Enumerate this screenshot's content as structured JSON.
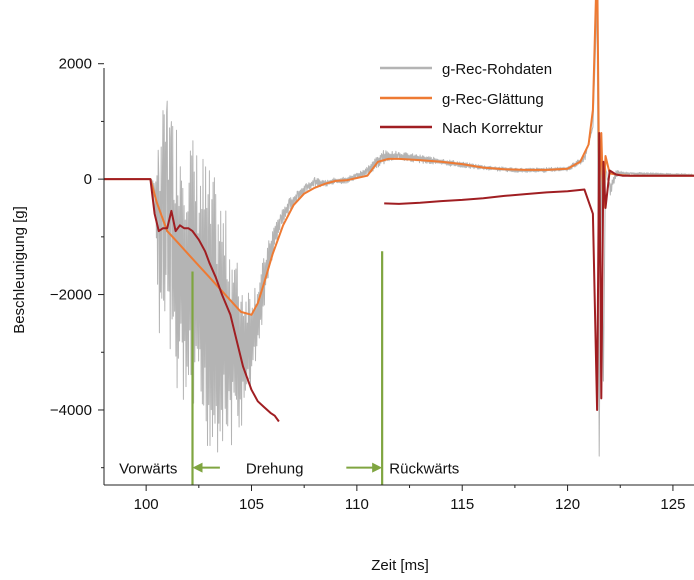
{
  "chart_data": {
    "type": "line",
    "title": "",
    "xlabel": "Zeit [ms]",
    "ylabel": "Beschleunigung [g]",
    "xlim": [
      98,
      126
    ],
    "ylim": [
      -5300,
      3000
    ],
    "xticks": [
      100,
      105,
      110,
      115,
      120,
      125
    ],
    "yticks": [
      2000,
      0,
      -2000,
      -4000
    ],
    "ytick_labels": [
      "2000",
      "0",
      "−2000",
      "−4000"
    ],
    "grid": false,
    "legend_position": "top-right",
    "series": [
      {
        "name": "g-Rec-Rohdaten",
        "color": "#b4b4b4",
        "x": [
          98,
          100.2,
          100.4,
          100.6,
          100.8,
          101,
          101.2,
          101.5,
          101.8,
          102.1,
          102.4,
          102.7,
          103,
          103.3,
          103.6,
          103.9,
          104.2,
          104.5,
          104.8,
          105.1,
          105.4,
          105.7,
          106,
          106.4,
          106.8,
          107.2,
          107.6,
          108,
          108.5,
          109,
          109.5,
          110,
          110.5,
          111,
          111.2,
          111.5,
          112,
          113,
          114,
          115,
          116,
          117,
          118,
          119,
          120,
          120.8,
          121.2,
          121.4,
          121.5,
          121.6,
          121.7,
          121.8,
          122,
          122.3,
          122.6,
          123,
          124,
          125,
          126
        ],
        "y": [
          0,
          0,
          -300,
          -900,
          -800,
          -700,
          -1200,
          -1400,
          -1600,
          -1700,
          -1900,
          -2100,
          -2300,
          -2400,
          -2500,
          -2700,
          -2900,
          -3000,
          -2900,
          -2600,
          -2200,
          -1600,
          -1100,
          -700,
          -450,
          -300,
          -150,
          -50,
          -80,
          -30,
          -20,
          50,
          150,
          300,
          350,
          400,
          400,
          350,
          300,
          250,
          200,
          170,
          150,
          160,
          180,
          350,
          900,
          3100,
          -4800,
          600,
          -3500,
          200,
          -200,
          100,
          100,
          100,
          90,
          80,
          70
        ],
        "noise": [
          0,
          0,
          300,
          1800,
          2000,
          2200,
          2400,
          2500,
          2600,
          2600,
          2500,
          2600,
          2500,
          2400,
          2200,
          2000,
          1700,
          1400,
          1100,
          800,
          600,
          400,
          250,
          150,
          120,
          100,
          90,
          80,
          60,
          60,
          60,
          60,
          70,
          120,
          150,
          90,
          80,
          70,
          60,
          50,
          40,
          40,
          40,
          40,
          40,
          60,
          0,
          0,
          0,
          0,
          0,
          0,
          150,
          60,
          30,
          20,
          20,
          20,
          20
        ]
      },
      {
        "name": "g-Rec-Glättung",
        "color": "#ee7a33",
        "x": [
          98,
          100.2,
          100.5,
          101,
          101.5,
          102,
          102.5,
          103,
          103.5,
          104,
          104.5,
          105,
          105.3,
          105.6,
          106,
          106.5,
          107,
          107.5,
          108,
          108.5,
          109,
          109.5,
          110,
          110.5,
          111,
          111.5,
          112,
          113,
          114,
          115,
          116,
          117,
          118,
          119,
          120,
          120.6,
          121,
          121.2,
          121.4,
          121.5,
          121.6,
          121.7,
          121.8,
          122,
          122.3,
          122.6,
          123,
          124,
          125,
          126
        ],
        "y": [
          0,
          0,
          -400,
          -900,
          -1100,
          -1300,
          -1500,
          -1700,
          -1900,
          -2100,
          -2300,
          -2350,
          -2150,
          -1800,
          -1300,
          -800,
          -450,
          -250,
          -150,
          -80,
          -30,
          -20,
          20,
          60,
          300,
          350,
          350,
          330,
          300,
          260,
          200,
          170,
          160,
          160,
          180,
          300,
          600,
          1200,
          3900,
          -200,
          800,
          -500,
          400,
          100,
          80,
          70,
          60,
          60,
          60,
          60
        ]
      },
      {
        "name": "Nach Korrektur",
        "color": "#a01e22",
        "x": [
          98,
          100.2,
          100.4,
          100.6,
          100.8,
          101,
          101.2,
          101.4,
          101.6,
          101.8,
          102,
          102.2,
          102.5,
          102.8,
          103,
          103.3,
          103.6,
          104,
          104.3,
          104.6,
          105,
          105.3,
          105.6,
          105.9,
          106.1,
          106.3
        ],
        "y": [
          0,
          0,
          -600,
          -900,
          -850,
          -850,
          -550,
          -900,
          -800,
          -850,
          -850,
          -900,
          -1050,
          -1250,
          -1450,
          -1700,
          -2000,
          -2350,
          -2800,
          -3250,
          -3650,
          -3850,
          -3950,
          -4050,
          -4100,
          -4200
        ]
      },
      {
        "name": "Nach Korrektur (2)",
        "color": "#a01e22",
        "x": [
          111.3,
          112,
          113,
          114,
          115,
          116,
          117,
          118,
          119,
          120,
          120.8,
          121.2,
          121.4,
          121.5,
          121.6,
          121.7,
          121.8,
          122,
          122.3,
          122.6,
          123,
          124,
          125,
          126
        ],
        "y": [
          -420,
          -430,
          -410,
          -380,
          -360,
          -330,
          -290,
          -260,
          -230,
          -210,
          -180,
          -600,
          -4000,
          800,
          -3800,
          300,
          -500,
          150,
          80,
          60,
          60,
          60,
          60,
          60
        ]
      }
    ],
    "annotations": {
      "vline_color": "#7fa540",
      "vlines": [
        {
          "x": 102.2,
          "y_top": -1600,
          "y_bottom": -5300
        },
        {
          "x": 111.2,
          "y_top": -1250,
          "y_bottom": -5300
        }
      ],
      "phase_y": -5000,
      "arrows": [
        {
          "from": 103.5,
          "to": 102.2
        },
        {
          "from": 109.5,
          "to": 111.2
        }
      ],
      "phase_labels": [
        {
          "text": "Vorwärts",
          "x": 100.1
        },
        {
          "text": "Drehung",
          "x": 106.1
        },
        {
          "text": "Rückwärts",
          "x": 113.2
        }
      ]
    }
  }
}
